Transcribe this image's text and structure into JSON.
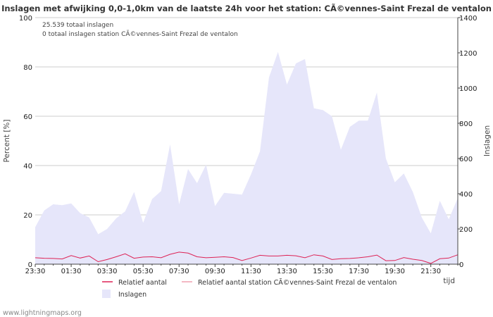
{
  "chart_data": {
    "type": "area",
    "title": "Inslagen met afwijking 0,0-1,0km van de laatste 24h voor het station: CÃ©vennes-Saint Frezal de ventalon",
    "info_lines": [
      "25.539 totaal inslagen",
      "0 totaal inslagen station CÃ©vennes-Saint Frezal de ventalon"
    ],
    "ylabel_left": "Percent   [%]",
    "ylabel_right": "Inslagen",
    "xlabel": "tijd",
    "ylim_left": [
      0,
      100
    ],
    "ylim_right": [
      0,
      1400
    ],
    "yticks_left": [
      0,
      20,
      40,
      60,
      80,
      100
    ],
    "yticks_right": [
      0,
      200,
      400,
      600,
      800,
      1000,
      1200,
      1400
    ],
    "xtick_labels": [
      "23:30",
      "01:30",
      "03:30",
      "05:30",
      "07:30",
      "09:30",
      "11:30",
      "13:30",
      "15:30",
      "17:30",
      "19:30",
      "21:30"
    ],
    "inslagen": [
      210,
      305,
      340,
      335,
      345,
      290,
      265,
      170,
      200,
      260,
      300,
      410,
      235,
      370,
      415,
      680,
      340,
      540,
      460,
      565,
      330,
      405,
      400,
      395,
      510,
      640,
      1060,
      1205,
      1020,
      1140,
      1165,
      885,
      875,
      840,
      650,
      780,
      815,
      815,
      975,
      600,
      465,
      515,
      410,
      265,
      175,
      360,
      255,
      375
    ],
    "relatief": [
      2.6,
      2.4,
      2.3,
      2.1,
      3.5,
      2.5,
      3.3,
      1.0,
      1.9,
      3.0,
      4.2,
      2.4,
      2.9,
      3.0,
      2.6,
      4.0,
      4.9,
      4.5,
      3.0,
      2.6,
      2.8,
      3.0,
      2.7,
      1.5,
      2.5,
      3.6,
      3.3,
      3.3,
      3.6,
      3.4,
      2.6,
      3.8,
      3.3,
      1.9,
      2.2,
      2.3,
      2.6,
      3.0,
      3.7,
      1.4,
      1.5,
      2.7,
      2.0,
      1.5,
      0.3,
      2.2,
      2.5,
      3.8
    ],
    "relatief_station": [
      0,
      0,
      0,
      0,
      0,
      0,
      0,
      0,
      0,
      0,
      0,
      0,
      0,
      0,
      0,
      0,
      0,
      0,
      0,
      0,
      0,
      0,
      0,
      0,
      0,
      0,
      0,
      0,
      0,
      0,
      0,
      0,
      0,
      0,
      0,
      0,
      0,
      0,
      0,
      0,
      0,
      0,
      0,
      0,
      0,
      0,
      0,
      0
    ],
    "legend": [
      {
        "label": "Relatief aantal",
        "color": "#dd2255"
      },
      {
        "label": "Relatief aantal station CÃ©vennes-Saint Frezal de ventalon",
        "color": "#f0a0b0"
      },
      {
        "label": "Inslagen",
        "color": "#e6e6fa"
      }
    ]
  },
  "footer": "www.lightningmaps.org"
}
